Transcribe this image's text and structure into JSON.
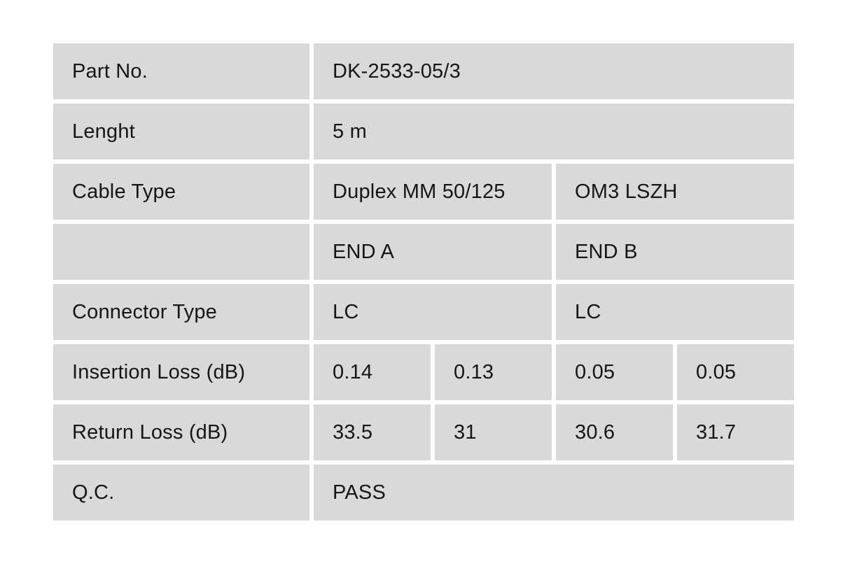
{
  "colors": {
    "cell_background": "#d9d9d9",
    "page_background": "#ffffff",
    "text": "#161616"
  },
  "table": {
    "rows": {
      "part_no": {
        "label": "Part No.",
        "value": "DK-2533-05/3"
      },
      "length": {
        "label": "Lenght",
        "value": "5 m"
      },
      "cable_type": {
        "label": "Cable Type",
        "value_a": "Duplex MM 50/125",
        "value_b": "OM3 LSZH"
      },
      "end_header": {
        "label": "",
        "value_a": "END A",
        "value_b": "END B"
      },
      "connector_type": {
        "label": "Connector Type",
        "value_a": "LC",
        "value_b": "LC"
      },
      "insertion_loss": {
        "label": "Insertion Loss (dB)",
        "end_a_1": "0.14",
        "end_a_2": "0.13",
        "end_b_1": "0.05",
        "end_b_2": "0.05"
      },
      "return_loss": {
        "label": "Return Loss (dB)",
        "end_a_1": "33.5",
        "end_a_2": "31",
        "end_b_1": "30.6",
        "end_b_2": "31.7"
      },
      "qc": {
        "label": "Q.C.",
        "value": "PASS"
      }
    }
  }
}
